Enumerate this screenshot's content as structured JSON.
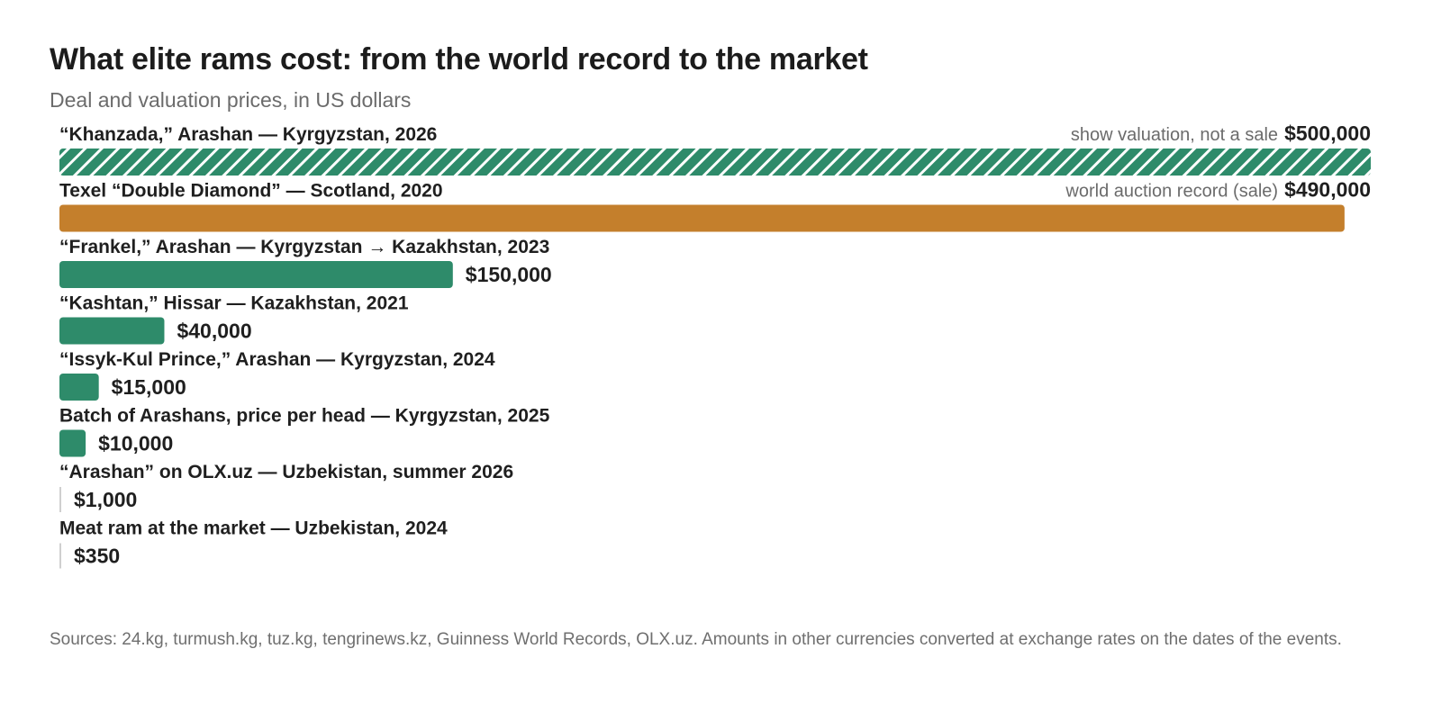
{
  "header": {
    "title": "What elite rams cost: from the world record to the market",
    "subtitle": "Deal and valuation prices, in US dollars"
  },
  "footer": {
    "source": "Sources: 24.kg, turmush.kg, tuz.kg, tengrinews.kz, Guinness World Records, OLX.uz. Amounts in other currencies converted at exchange rates on the dates of the events."
  },
  "colors": {
    "green": "#2e8b6a",
    "orange": "#c47f2c",
    "tick": "#cfcfcf",
    "text": "#1f1f1f",
    "note": "#6b6b6b"
  },
  "chart_data": {
    "type": "bar",
    "orientation": "horizontal",
    "title": "What elite rams cost: from the world record to the market",
    "subtitle": "Deal and valuation prices, in US dollars",
    "xlim": [
      0,
      500000
    ],
    "grid": false,
    "categories": [
      "“Khanzada,” Arashan — Kyrgyzstan, 2026",
      "Texel “Double Diamond” — Scotland, 2020",
      "“Frankel,” Arashan — Kyrgyzstan → Kazakhstan, 2023",
      "“Kashtan,” Hissar — Kazakhstan, 2021",
      "“Issyk-Kul Prince,” Arashan — Kyrgyzstan, 2024",
      "Batch of Arashans, price per head — Kyrgyzstan, 2025",
      "“Arashan” on OLX.uz — Uzbekistan, summer 2026",
      "Meat ram at the market — Uzbekistan, 2024"
    ],
    "values": [
      500000,
      490000,
      150000,
      40000,
      15000,
      10000,
      1000,
      350
    ],
    "value_labels": [
      "$500,000",
      "$490,000",
      "$150,000",
      "$40,000",
      "$15,000",
      "$10,000",
      "$1,000",
      "$350"
    ],
    "notes": [
      "show valuation, not a sale",
      "world auction record (sale)",
      "",
      "",
      "",
      "",
      "",
      ""
    ],
    "styles": [
      "hatched-green",
      "orange",
      "green",
      "green",
      "green",
      "green",
      "green",
      "green"
    ]
  }
}
